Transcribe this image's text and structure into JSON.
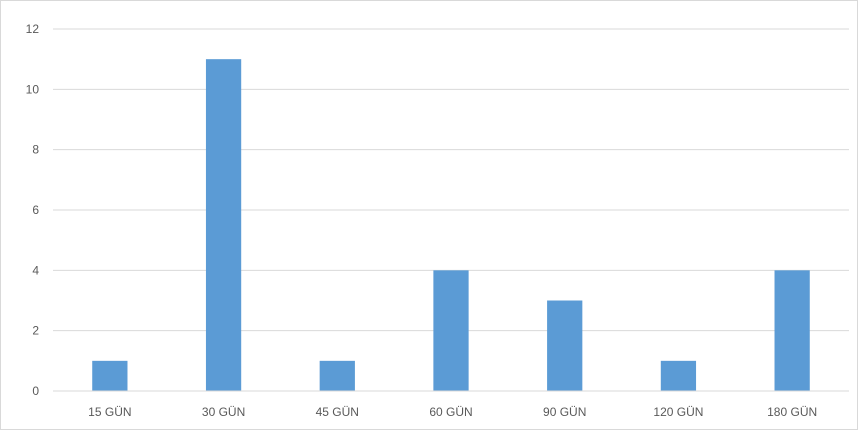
{
  "chart_data": {
    "type": "bar",
    "title": "",
    "xlabel": "",
    "ylabel": "",
    "categories": [
      "15 GÜN",
      "30 GÜN",
      "45 GÜN",
      "60 GÜN",
      "90 GÜN",
      "120 GÜN",
      "180 GÜN"
    ],
    "values": [
      1,
      11,
      1,
      4,
      3,
      1,
      4
    ],
    "ylim": [
      0,
      12
    ],
    "yticks": [
      0,
      2,
      4,
      6,
      8,
      10,
      12
    ],
    "grid": true,
    "legend": "none",
    "colors": {
      "bar": "#5b9bd5",
      "grid": "#d9d9d9",
      "tick_text": "#595959"
    }
  }
}
